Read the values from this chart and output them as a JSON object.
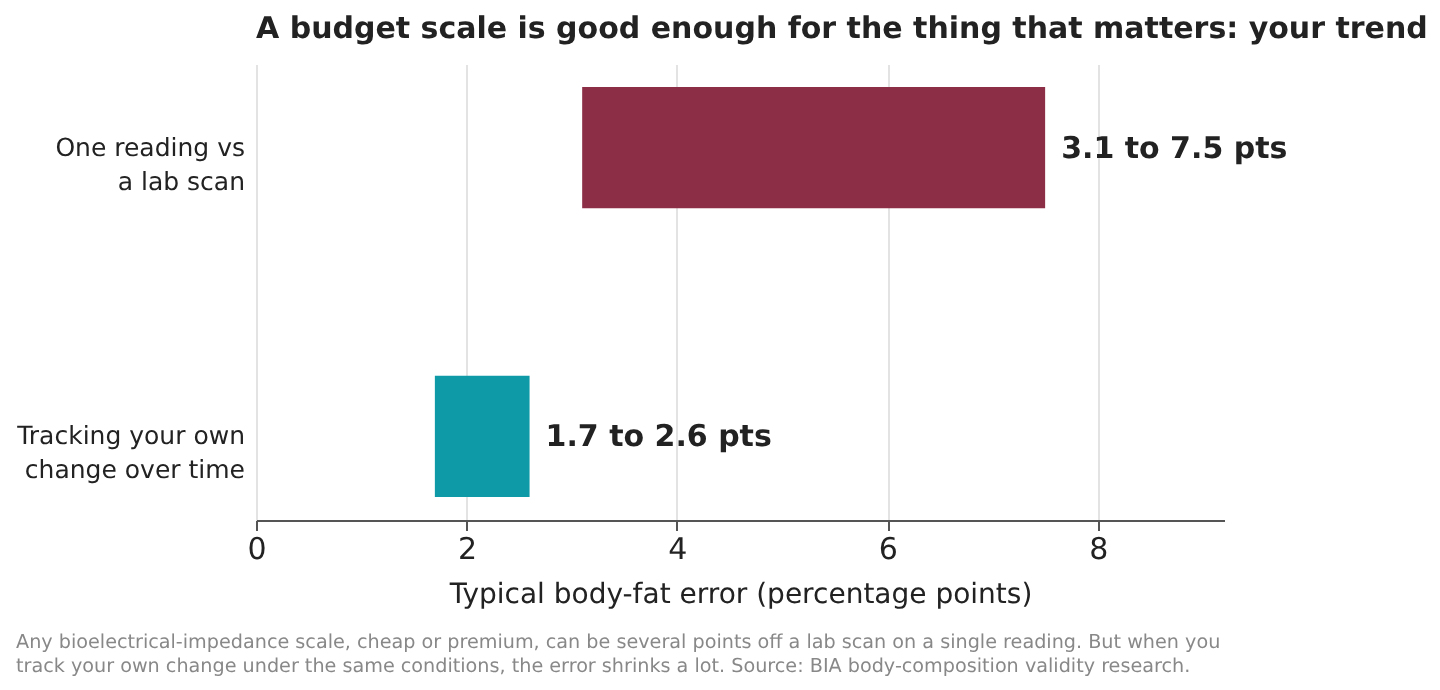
{
  "chart_data": {
    "type": "bar",
    "orientation": "horizontal",
    "title": "A budget scale is good enough for the thing that matters: your trend",
    "xlabel": "Typical body-fat error (percentage points)",
    "categories": [
      "One reading vs\na lab scan",
      "Tracking your own\nchange over time"
    ],
    "base": [
      3.1,
      1.7
    ],
    "values": [
      4.4,
      0.9
    ],
    "colors": [
      "#8b2e46",
      "#0e9aa7"
    ],
    "xlim": [
      0,
      9.2
    ],
    "xticks": [
      0,
      2,
      4,
      6,
      8
    ],
    "grid": "x",
    "annotations": [
      {
        "text": "3.1 to 7.5 pts",
        "x": 7.5,
        "y": "One reading vs\na lab scan"
      },
      {
        "text": "1.7 to 2.6 pts",
        "x": 2.6,
        "y": "Tracking your own\nchange over time"
      },
      "Any bioelectrical-impedance scale, cheap or premium, can be several points off a lab scan on a single reading. But when you track your own change under the same conditions, the error shrinks a lot. Source: BIA body-composition validity research."
    ]
  }
}
